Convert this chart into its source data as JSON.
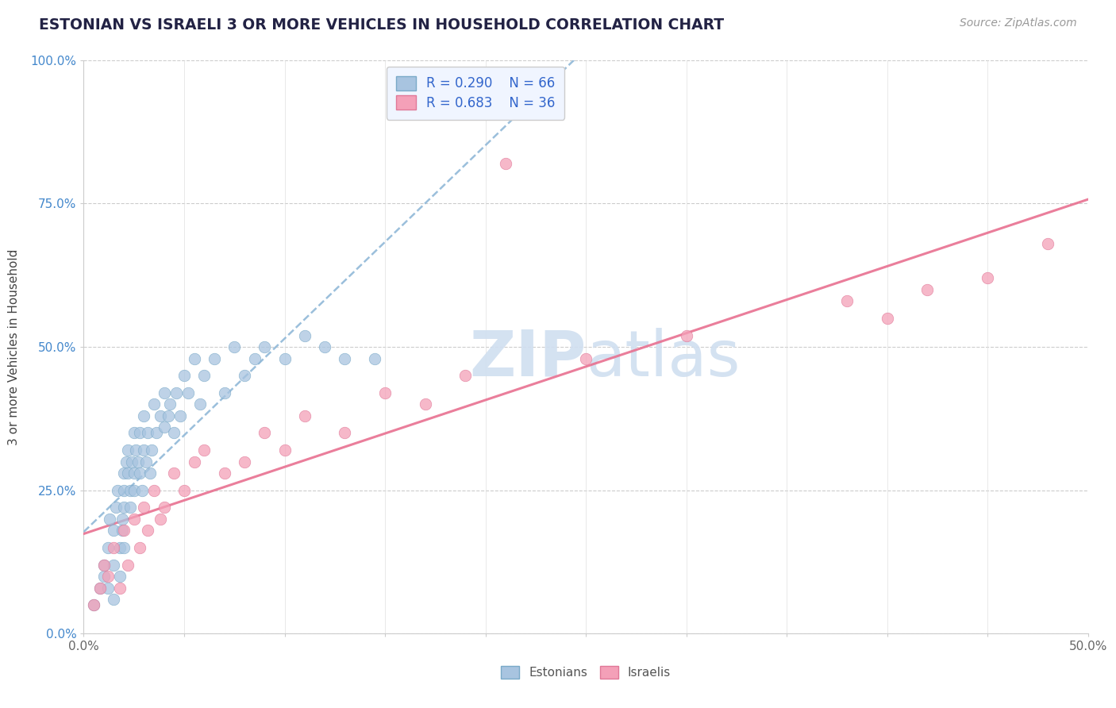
{
  "title": "ESTONIAN VS ISRAELI 3 OR MORE VEHICLES IN HOUSEHOLD CORRELATION CHART",
  "source": "Source: ZipAtlas.com",
  "ylabel": "3 or more Vehicles in Household",
  "xlim": [
    0.0,
    0.5
  ],
  "ylim": [
    0.0,
    1.0
  ],
  "xticks": [
    0.0,
    0.05,
    0.1,
    0.15,
    0.2,
    0.25,
    0.3,
    0.35,
    0.4,
    0.45,
    0.5
  ],
  "yticks": [
    0.0,
    0.25,
    0.5,
    0.75,
    1.0
  ],
  "ytick_labels": [
    "0.0%",
    "25.0%",
    "50.0%",
    "75.0%",
    "100.0%"
  ],
  "xtick_labels": [
    "0.0%",
    "",
    "",
    "",
    "",
    "",
    "",
    "",
    "",
    "",
    "50.0%"
  ],
  "estonian_R": 0.29,
  "estonian_N": 66,
  "israeli_R": 0.683,
  "israeli_N": 36,
  "estonian_color": "#a8c4e0",
  "estonian_edge_color": "#7aaac8",
  "israeli_color": "#f4a0b8",
  "israeli_edge_color": "#e07898",
  "estonian_line_color": "#90b8d8",
  "israeli_line_color": "#e87090",
  "watermark_color": "#d0dff0",
  "legend_label_estonian": "Estonians",
  "legend_label_israeli": "Israelis",
  "background_color": "#ffffff",
  "estonian_x": [
    0.005,
    0.008,
    0.01,
    0.01,
    0.012,
    0.012,
    0.013,
    0.015,
    0.015,
    0.015,
    0.016,
    0.017,
    0.018,
    0.018,
    0.019,
    0.019,
    0.02,
    0.02,
    0.02,
    0.02,
    0.021,
    0.022,
    0.022,
    0.023,
    0.023,
    0.024,
    0.025,
    0.025,
    0.025,
    0.026,
    0.027,
    0.028,
    0.028,
    0.029,
    0.03,
    0.03,
    0.031,
    0.032,
    0.033,
    0.034,
    0.035,
    0.036,
    0.038,
    0.04,
    0.04,
    0.042,
    0.043,
    0.045,
    0.046,
    0.048,
    0.05,
    0.052,
    0.055,
    0.058,
    0.06,
    0.065,
    0.07,
    0.075,
    0.08,
    0.085,
    0.09,
    0.1,
    0.11,
    0.12,
    0.13,
    0.145
  ],
  "estonian_y": [
    0.05,
    0.08,
    0.12,
    0.1,
    0.15,
    0.08,
    0.2,
    0.18,
    0.12,
    0.06,
    0.22,
    0.25,
    0.15,
    0.1,
    0.2,
    0.18,
    0.28,
    0.25,
    0.22,
    0.15,
    0.3,
    0.32,
    0.28,
    0.25,
    0.22,
    0.3,
    0.35,
    0.28,
    0.25,
    0.32,
    0.3,
    0.35,
    0.28,
    0.25,
    0.38,
    0.32,
    0.3,
    0.35,
    0.28,
    0.32,
    0.4,
    0.35,
    0.38,
    0.42,
    0.36,
    0.38,
    0.4,
    0.35,
    0.42,
    0.38,
    0.45,
    0.42,
    0.48,
    0.4,
    0.45,
    0.48,
    0.42,
    0.5,
    0.45,
    0.48,
    0.5,
    0.48,
    0.52,
    0.5,
    0.48,
    0.48
  ],
  "israeli_x": [
    0.005,
    0.008,
    0.01,
    0.012,
    0.015,
    0.018,
    0.02,
    0.022,
    0.025,
    0.028,
    0.03,
    0.032,
    0.035,
    0.038,
    0.04,
    0.045,
    0.05,
    0.055,
    0.06,
    0.07,
    0.08,
    0.09,
    0.1,
    0.11,
    0.13,
    0.15,
    0.17,
    0.19,
    0.21,
    0.25,
    0.3,
    0.38,
    0.4,
    0.42,
    0.45,
    0.48
  ],
  "israeli_y": [
    0.05,
    0.08,
    0.12,
    0.1,
    0.15,
    0.08,
    0.18,
    0.12,
    0.2,
    0.15,
    0.22,
    0.18,
    0.25,
    0.2,
    0.22,
    0.28,
    0.25,
    0.3,
    0.32,
    0.28,
    0.3,
    0.35,
    0.32,
    0.38,
    0.35,
    0.42,
    0.4,
    0.45,
    0.82,
    0.48,
    0.52,
    0.58,
    0.55,
    0.6,
    0.62,
    0.68
  ]
}
